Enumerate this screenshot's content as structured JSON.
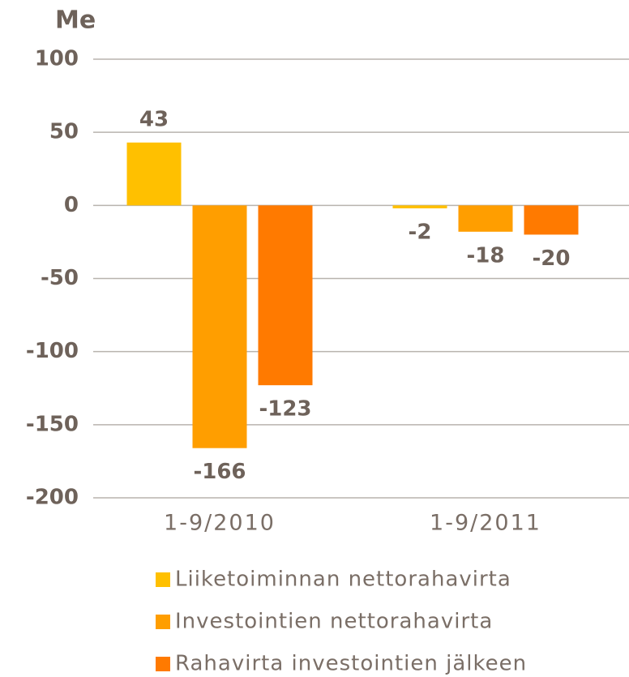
{
  "chart_data": {
    "type": "bar",
    "title": "Me",
    "categories": [
      "1-9/2010",
      "1-9/2011"
    ],
    "series": [
      {
        "name": "Liiketoiminnan nettorahavirta",
        "color": "#ffc000",
        "values": [
          43,
          -2
        ]
      },
      {
        "name": "Investointien nettorahavirta",
        "color": "#ff9e00",
        "values": [
          -166,
          -18
        ]
      },
      {
        "name": "Rahavirta investointien jälkeen",
        "color": "#ff7a00",
        "values": [
          -123,
          -20
        ]
      }
    ],
    "ylim": [
      -200,
      100
    ],
    "yticks": [
      -200,
      -150,
      -100,
      -50,
      0,
      50,
      100
    ],
    "grid": true,
    "legend": "bottom"
  }
}
